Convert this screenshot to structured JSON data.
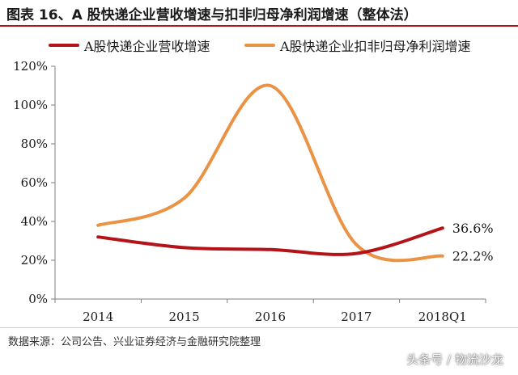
{
  "title": "图表 16、A 股快递企业营收增速与扣非归母净利润增速（整体法）",
  "source": "数据来源：公司公告、兴业证券经济与金融研究院整理",
  "watermark": "头条号 / 物流沙龙",
  "colors": {
    "title_rule": "#b5131a",
    "series_revenue": "#b5131a",
    "series_profit": "#ea9344",
    "axis": "#7f7f7f",
    "text": "#1a1a1a"
  },
  "chart_data": {
    "type": "line",
    "categories": [
      "2014",
      "2015",
      "2016",
      "2017",
      "2018Q1"
    ],
    "series": [
      {
        "name": "A股快递企业营收增速",
        "values": [
          32,
          26.5,
          25.5,
          23.5,
          36.6
        ]
      },
      {
        "name": "A股快递企业扣非归母净利润增速",
        "values": [
          38,
          52,
          110,
          28,
          22.2
        ]
      }
    ],
    "ylim": [
      0,
      120
    ],
    "yticks": [
      "0%",
      "20%",
      "40%",
      "60%",
      "80%",
      "100%",
      "120%"
    ],
    "data_labels": [
      "36.6%",
      "22.2%"
    ],
    "grid": false,
    "legend_position": "top",
    "smooth": true
  }
}
